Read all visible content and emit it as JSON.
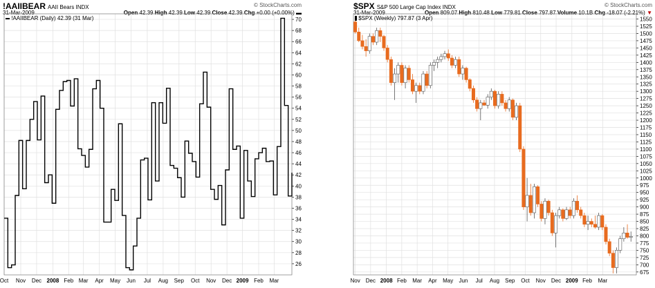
{
  "charts": [
    {
      "header": {
        "symbol": "!AAIIBEAR",
        "name": "AAII Bears",
        "exchange": "INDX",
        "date": "31-Mar-2009",
        "watermark": "© StockCharts.com",
        "open_label": "Open",
        "open": "42.39",
        "high_label": "High",
        "high": "42.39",
        "low_label": "Low",
        "low": "42.39",
        "close_label": "Close",
        "close": "42.39",
        "chg_label": "Chg",
        "chg": "+0.00 (+0.00%)"
      },
      "legend": "!AAIIBEAR (Daily) 42.39 (31 Mar)"
    },
    {
      "header": {
        "symbol": "$SPX",
        "name": "S&P 500 Large Cap Index",
        "exchange": "INDX",
        "date": "31-Mar-2009",
        "watermark": "© StockCharts.com",
        "open_label": "Open",
        "open": "809.07",
        "high_label": "High",
        "high": "810.48",
        "low_label": "Low",
        "low": "779.81",
        "close_label": "Close",
        "close": "797.87",
        "volume_label": "Volume",
        "volume": "10.1B",
        "chg_label": "Chg",
        "chg": "-18.07 (-2.21%)"
      },
      "legend": "$SPX (Weekly) 797.87 (3 Apr)"
    }
  ],
  "chart_data": [
    {
      "type": "line",
      "line_color": "#000000",
      "ylim": [
        24,
        71
      ],
      "yticks": [
        26,
        28,
        30,
        32,
        34,
        36,
        38,
        40,
        42,
        44,
        46,
        48,
        50,
        52,
        54,
        56,
        58,
        60,
        62,
        64,
        66,
        68,
        70
      ],
      "xlim": [
        0,
        78
      ],
      "xticks": [
        {
          "x": 0,
          "label": "Oct"
        },
        {
          "x": 4.5,
          "label": "Nov"
        },
        {
          "x": 8.8,
          "label": "Dec"
        },
        {
          "x": 13.2,
          "label": "2008"
        },
        {
          "x": 17.5,
          "label": "Feb"
        },
        {
          "x": 21.5,
          "label": "Mar"
        },
        {
          "x": 25.8,
          "label": "Apr"
        },
        {
          "x": 30.1,
          "label": "May"
        },
        {
          "x": 34.4,
          "label": "Jun"
        },
        {
          "x": 38.8,
          "label": "Jul"
        },
        {
          "x": 43.1,
          "label": "Aug"
        },
        {
          "x": 47.4,
          "label": "Sep"
        },
        {
          "x": 51.8,
          "label": "Oct"
        },
        {
          "x": 56.1,
          "label": "Nov"
        },
        {
          "x": 60.4,
          "label": "Dec"
        },
        {
          "x": 64.6,
          "label": "2009"
        },
        {
          "x": 69.0,
          "label": "Feb"
        },
        {
          "x": 73.2,
          "label": "Mar"
        }
      ],
      "values": [
        34.2,
        25.3,
        25.8,
        38.3,
        48.2,
        39.5,
        48.2,
        52.0,
        55.2,
        48.3,
        56.2,
        40.6,
        42.0,
        36.9,
        53.8,
        57.2,
        58.8,
        59.0,
        54.4,
        59.3,
        46.7,
        45.5,
        43.4,
        46.6,
        57.5,
        59.0,
        54.0,
        33.5,
        33.5,
        39.4,
        37.4,
        51.2,
        34.7,
        25.3,
        24.9,
        29.2,
        34.2,
        44.7,
        45.0,
        37.5,
        55.0,
        40.9,
        55.0,
        51.3,
        57.6,
        43.7,
        43.2,
        41.5,
        38.0,
        48.1,
        45.9,
        44.4,
        41.6,
        54.8,
        60.5,
        54.2,
        39.4,
        37.6,
        40.1,
        33.0,
        42.9,
        57.5,
        46.6,
        47.2,
        34.2,
        46.4,
        40.9,
        38.1,
        44.9,
        46.0,
        46.8,
        44.4,
        44.5,
        38.4,
        47.1,
        70.2,
        54.5,
        38.2,
        42.4
      ]
    },
    {
      "type": "candlestick",
      "up_color": "#ffffff",
      "down_color": "#e86b1f",
      "ylim": [
        665,
        1568
      ],
      "yticks": [
        675,
        700,
        725,
        750,
        775,
        800,
        825,
        850,
        875,
        900,
        925,
        950,
        975,
        1000,
        1025,
        1050,
        1075,
        1100,
        1125,
        1150,
        1175,
        1200,
        1225,
        1250,
        1275,
        1300,
        1325,
        1350,
        1375,
        1400,
        1425,
        1450,
        1475,
        1500,
        1525,
        1550
      ],
      "xlim": [
        0,
        79
      ],
      "xticks": [
        {
          "x": 0.5,
          "label": "Nov"
        },
        {
          "x": 4.8,
          "label": "Dec"
        },
        {
          "x": 9.2,
          "label": "2008"
        },
        {
          "x": 13.5,
          "label": "Feb"
        },
        {
          "x": 17.8,
          "label": "Mar"
        },
        {
          "x": 22.1,
          "label": "Apr"
        },
        {
          "x": 26.4,
          "label": "May"
        },
        {
          "x": 30.7,
          "label": "Jun"
        },
        {
          "x": 35.1,
          "label": "Jul"
        },
        {
          "x": 39.4,
          "label": "Aug"
        },
        {
          "x": 43.7,
          "label": "Sep"
        },
        {
          "x": 48.0,
          "label": "Oct"
        },
        {
          "x": 52.3,
          "label": "Nov"
        },
        {
          "x": 56.6,
          "label": "Dec"
        },
        {
          "x": 61.0,
          "label": "2009"
        },
        {
          "x": 65.3,
          "label": "Feb"
        },
        {
          "x": 69.6,
          "label": "Mar"
        }
      ],
      "candles": [
        {
          "o": 1540,
          "h": 1552,
          "l": 1500,
          "c": 1505
        },
        {
          "o": 1505,
          "h": 1520,
          "l": 1470,
          "c": 1475
        },
        {
          "o": 1475,
          "h": 1495,
          "l": 1445,
          "c": 1455
        },
        {
          "o": 1455,
          "h": 1480,
          "l": 1420,
          "c": 1440
        },
        {
          "o": 1440,
          "h": 1500,
          "l": 1430,
          "c": 1490
        },
        {
          "o": 1490,
          "h": 1500,
          "l": 1460,
          "c": 1470
        },
        {
          "o": 1470,
          "h": 1520,
          "l": 1460,
          "c": 1510
        },
        {
          "o": 1510,
          "h": 1520,
          "l": 1470,
          "c": 1490
        },
        {
          "o": 1490,
          "h": 1495,
          "l": 1440,
          "c": 1450
        },
        {
          "o": 1450,
          "h": 1460,
          "l": 1400,
          "c": 1410
        },
        {
          "o": 1410,
          "h": 1420,
          "l": 1320,
          "c": 1330
        },
        {
          "o": 1330,
          "h": 1380,
          "l": 1270,
          "c": 1360
        },
        {
          "o": 1360,
          "h": 1400,
          "l": 1330,
          "c": 1390
        },
        {
          "o": 1390,
          "h": 1400,
          "l": 1320,
          "c": 1330
        },
        {
          "o": 1330,
          "h": 1390,
          "l": 1310,
          "c": 1380
        },
        {
          "o": 1380,
          "h": 1390,
          "l": 1330,
          "c": 1340
        },
        {
          "o": 1340,
          "h": 1360,
          "l": 1290,
          "c": 1300
        },
        {
          "o": 1300,
          "h": 1330,
          "l": 1260,
          "c": 1320
        },
        {
          "o": 1320,
          "h": 1330,
          "l": 1290,
          "c": 1300
        },
        {
          "o": 1300,
          "h": 1370,
          "l": 1290,
          "c": 1360
        },
        {
          "o": 1360,
          "h": 1370,
          "l": 1310,
          "c": 1320
        },
        {
          "o": 1320,
          "h": 1400,
          "l": 1310,
          "c": 1390
        },
        {
          "o": 1390,
          "h": 1410,
          "l": 1370,
          "c": 1400
        },
        {
          "o": 1400,
          "h": 1420,
          "l": 1380,
          "c": 1410
        },
        {
          "o": 1410,
          "h": 1430,
          "l": 1400,
          "c": 1420
        },
        {
          "o": 1420,
          "h": 1440,
          "l": 1410,
          "c": 1430
        },
        {
          "o": 1430,
          "h": 1445,
          "l": 1405,
          "c": 1415
        },
        {
          "o": 1415,
          "h": 1425,
          "l": 1380,
          "c": 1390
        },
        {
          "o": 1390,
          "h": 1420,
          "l": 1380,
          "c": 1410
        },
        {
          "o": 1410,
          "h": 1420,
          "l": 1350,
          "c": 1360
        },
        {
          "o": 1360,
          "h": 1390,
          "l": 1340,
          "c": 1380
        },
        {
          "o": 1380,
          "h": 1385,
          "l": 1330,
          "c": 1340
        },
        {
          "o": 1340,
          "h": 1345,
          "l": 1300,
          "c": 1310
        },
        {
          "o": 1310,
          "h": 1320,
          "l": 1260,
          "c": 1270
        },
        {
          "o": 1270,
          "h": 1280,
          "l": 1230,
          "c": 1240
        },
        {
          "o": 1240,
          "h": 1270,
          "l": 1200,
          "c": 1260
        },
        {
          "o": 1260,
          "h": 1270,
          "l": 1250,
          "c": 1252
        },
        {
          "o": 1252,
          "h": 1290,
          "l": 1240,
          "c": 1280
        },
        {
          "o": 1280,
          "h": 1310,
          "l": 1270,
          "c": 1300
        },
        {
          "o": 1300,
          "h": 1305,
          "l": 1240,
          "c": 1250
        },
        {
          "o": 1250,
          "h": 1300,
          "l": 1240,
          "c": 1290
        },
        {
          "o": 1290,
          "h": 1300,
          "l": 1250,
          "c": 1260
        },
        {
          "o": 1260,
          "h": 1270,
          "l": 1230,
          "c": 1240
        },
        {
          "o": 1240,
          "h": 1280,
          "l": 1230,
          "c": 1270
        },
        {
          "o": 1270,
          "h": 1275,
          "l": 1200,
          "c": 1210
        },
        {
          "o": 1210,
          "h": 1260,
          "l": 1200,
          "c": 1250
        },
        {
          "o": 1250,
          "h": 1260,
          "l": 1090,
          "c": 1100
        },
        {
          "o": 1100,
          "h": 1110,
          "l": 890,
          "c": 900
        },
        {
          "o": 900,
          "h": 1000,
          "l": 850,
          "c": 940
        },
        {
          "o": 940,
          "h": 980,
          "l": 870,
          "c": 880
        },
        {
          "o": 880,
          "h": 980,
          "l": 860,
          "c": 970
        },
        {
          "o": 970,
          "h": 975,
          "l": 900,
          "c": 910
        },
        {
          "o": 910,
          "h": 920,
          "l": 850,
          "c": 860
        },
        {
          "o": 860,
          "h": 930,
          "l": 840,
          "c": 920
        },
        {
          "o": 920,
          "h": 925,
          "l": 870,
          "c": 880
        },
        {
          "o": 880,
          "h": 890,
          "l": 800,
          "c": 810
        },
        {
          "o": 810,
          "h": 880,
          "l": 760,
          "c": 870
        },
        {
          "o": 870,
          "h": 900,
          "l": 860,
          "c": 890
        },
        {
          "o": 890,
          "h": 895,
          "l": 850,
          "c": 860
        },
        {
          "o": 860,
          "h": 900,
          "l": 855,
          "c": 890
        },
        {
          "o": 890,
          "h": 900,
          "l": 860,
          "c": 870
        },
        {
          "o": 870,
          "h": 930,
          "l": 860,
          "c": 920
        },
        {
          "o": 920,
          "h": 940,
          "l": 880,
          "c": 890
        },
        {
          "o": 890,
          "h": 900,
          "l": 860,
          "c": 870
        },
        {
          "o": 870,
          "h": 880,
          "l": 830,
          "c": 840
        },
        {
          "o": 840,
          "h": 870,
          "l": 820,
          "c": 850
        },
        {
          "o": 850,
          "h": 860,
          "l": 830,
          "c": 840
        },
        {
          "o": 840,
          "h": 870,
          "l": 825,
          "c": 830
        },
        {
          "o": 830,
          "h": 880,
          "l": 820,
          "c": 870
        },
        {
          "o": 870,
          "h": 875,
          "l": 820,
          "c": 830
        },
        {
          "o": 830,
          "h": 840,
          "l": 770,
          "c": 780
        },
        {
          "o": 780,
          "h": 790,
          "l": 730,
          "c": 740
        },
        {
          "o": 740,
          "h": 750,
          "l": 670,
          "c": 690
        },
        {
          "o": 690,
          "h": 760,
          "l": 670,
          "c": 750
        },
        {
          "o": 750,
          "h": 800,
          "l": 740,
          "c": 790
        },
        {
          "o": 790,
          "h": 830,
          "l": 780,
          "c": 810
        },
        {
          "o": 810,
          "h": 840,
          "l": 790,
          "c": 795
        },
        {
          "o": 795,
          "h": 815,
          "l": 780,
          "c": 798
        }
      ]
    }
  ]
}
